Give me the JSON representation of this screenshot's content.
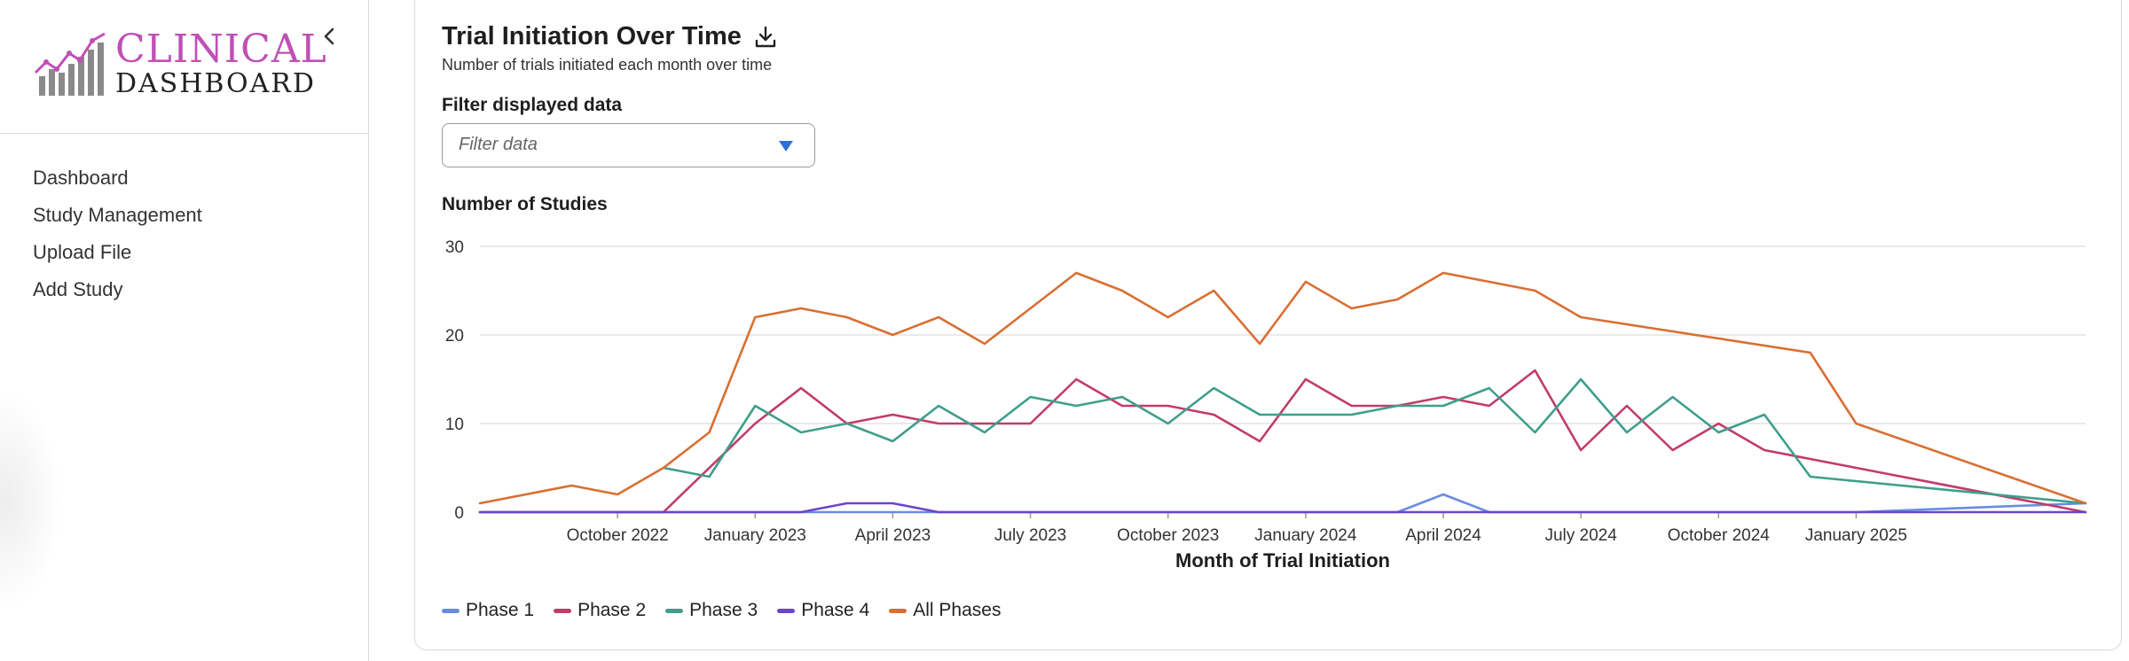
{
  "app": {
    "logo_line1": "CLINICAL",
    "logo_line2": "DASHBOARD",
    "accent_color": "#c04fb6"
  },
  "sidebar": {
    "items": [
      {
        "label": "Dashboard"
      },
      {
        "label": "Study Management"
      },
      {
        "label": "Upload File"
      },
      {
        "label": "Add Study"
      }
    ]
  },
  "card": {
    "title": "Trial Initiation Over Time",
    "subtitle": "Number of trials initiated each month over time",
    "filter_label": "Filter displayed data",
    "filter_placeholder": "Filter data",
    "icons": {
      "download": "download-icon",
      "dropdown": "caret-down-icon"
    }
  },
  "chart_data": {
    "type": "line",
    "ylabel": "Number of Studies",
    "xlabel": "Month of Trial Initiation",
    "ylim": [
      0,
      30
    ],
    "yticks": [
      0,
      10,
      20,
      30
    ],
    "grid": true,
    "legend_position": "bottom-left",
    "x_start": "2022-07",
    "x_end": "2025-06",
    "x": [
      "2022-07",
      "2022-08",
      "2022-09",
      "2022-10",
      "2022-11",
      "2022-12",
      "2023-01",
      "2023-02",
      "2023-03",
      "2023-04",
      "2023-05",
      "2023-06",
      "2023-07",
      "2023-08",
      "2023-09",
      "2023-10",
      "2023-11",
      "2023-12",
      "2024-01",
      "2024-02",
      "2024-03",
      "2024-04",
      "2024-05",
      "2024-06",
      "2024-07",
      "2024-08",
      "2024-09",
      "2024-10",
      "2024-11",
      "2024-12",
      "2025-01",
      "2025-02",
      "2025-03",
      "2025-04",
      "2025-05",
      "2025-06"
    ],
    "xticks": [
      {
        "label": "October 2022",
        "x": "2022-10"
      },
      {
        "label": "January 2023",
        "x": "2023-01"
      },
      {
        "label": "April 2023",
        "x": "2023-04"
      },
      {
        "label": "July 2023",
        "x": "2023-07"
      },
      {
        "label": "October 2023",
        "x": "2023-10"
      },
      {
        "label": "January 2024",
        "x": "2024-01"
      },
      {
        "label": "April 2024",
        "x": "2024-04"
      },
      {
        "label": "July 2024",
        "x": "2024-07"
      },
      {
        "label": "October 2024",
        "x": "2024-10"
      },
      {
        "label": "January 2025",
        "x": "2025-01"
      }
    ],
    "series": [
      {
        "name": "Phase 1",
        "color": "#6a8be0",
        "points": [
          [
            "2022-07",
            0
          ],
          [
            "2022-10",
            0
          ],
          [
            "2023-01",
            0
          ],
          [
            "2023-04",
            0
          ],
          [
            "2023-07",
            0
          ],
          [
            "2023-10",
            0
          ],
          [
            "2024-01",
            0
          ],
          [
            "2024-03",
            0
          ],
          [
            "2024-04",
            2
          ],
          [
            "2024-05",
            0
          ],
          [
            "2024-07",
            0
          ],
          [
            "2024-10",
            0
          ],
          [
            "2025-01",
            0
          ],
          [
            "2025-06",
            1
          ]
        ]
      },
      {
        "name": "Phase 2",
        "color": "#c23b6a",
        "points": [
          [
            "2022-07",
            0
          ],
          [
            "2022-11",
            0
          ],
          [
            "2022-12",
            5
          ],
          [
            "2023-01",
            10
          ],
          [
            "2023-02",
            14
          ],
          [
            "2023-03",
            10
          ],
          [
            "2023-04",
            11
          ],
          [
            "2023-05",
            10
          ],
          [
            "2023-06",
            10
          ],
          [
            "2023-07",
            10
          ],
          [
            "2023-08",
            15
          ],
          [
            "2023-09",
            12
          ],
          [
            "2023-10",
            12
          ],
          [
            "2023-11",
            11
          ],
          [
            "2023-12",
            8
          ],
          [
            "2024-01",
            15
          ],
          [
            "2024-02",
            12
          ],
          [
            "2024-03",
            12
          ],
          [
            "2024-04",
            13
          ],
          [
            "2024-05",
            12
          ],
          [
            "2024-06",
            16
          ],
          [
            "2024-07",
            7
          ],
          [
            "2024-08",
            12
          ],
          [
            "2024-09",
            7
          ],
          [
            "2024-10",
            10
          ],
          [
            "2024-11",
            7
          ],
          [
            "2024-12",
            6
          ],
          [
            "2025-06",
            0
          ]
        ]
      },
      {
        "name": "Phase 3",
        "color": "#3f9e8c",
        "points": [
          [
            "2022-11",
            5
          ],
          [
            "2022-12",
            4
          ],
          [
            "2023-01",
            12
          ],
          [
            "2023-02",
            9
          ],
          [
            "2023-03",
            10
          ],
          [
            "2023-04",
            8
          ],
          [
            "2023-05",
            12
          ],
          [
            "2023-06",
            9
          ],
          [
            "2023-07",
            13
          ],
          [
            "2023-08",
            12
          ],
          [
            "2023-09",
            13
          ],
          [
            "2023-10",
            10
          ],
          [
            "2023-11",
            14
          ],
          [
            "2023-12",
            11
          ],
          [
            "2024-01",
            11
          ],
          [
            "2024-02",
            11
          ],
          [
            "2024-03",
            12
          ],
          [
            "2024-04",
            12
          ],
          [
            "2024-05",
            14
          ],
          [
            "2024-06",
            9
          ],
          [
            "2024-07",
            15
          ],
          [
            "2024-08",
            9
          ],
          [
            "2024-09",
            13
          ],
          [
            "2024-10",
            9
          ],
          [
            "2024-11",
            11
          ],
          [
            "2024-12",
            4
          ],
          [
            "2025-06",
            1
          ]
        ]
      },
      {
        "name": "Phase 4",
        "color": "#6b45c9",
        "points": [
          [
            "2022-07",
            0
          ],
          [
            "2022-10",
            0
          ],
          [
            "2023-01",
            0
          ],
          [
            "2023-02",
            0
          ],
          [
            "2023-03",
            1
          ],
          [
            "2023-04",
            1
          ],
          [
            "2023-05",
            0
          ],
          [
            "2023-07",
            0
          ],
          [
            "2023-10",
            0
          ],
          [
            "2024-01",
            0
          ],
          [
            "2024-04",
            0
          ],
          [
            "2024-07",
            0
          ],
          [
            "2024-10",
            0
          ],
          [
            "2025-01",
            0
          ],
          [
            "2025-06",
            0
          ]
        ]
      },
      {
        "name": "All Phases",
        "color": "#d96f33",
        "points": [
          [
            "2022-07",
            1
          ],
          [
            "2022-09",
            3
          ],
          [
            "2022-10",
            2
          ],
          [
            "2022-11",
            5
          ],
          [
            "2022-12",
            9
          ],
          [
            "2023-01",
            22
          ],
          [
            "2023-02",
            23
          ],
          [
            "2023-03",
            22
          ],
          [
            "2023-04",
            20
          ],
          [
            "2023-05",
            22
          ],
          [
            "2023-06",
            19
          ],
          [
            "2023-07",
            23
          ],
          [
            "2023-08",
            27
          ],
          [
            "2023-09",
            25
          ],
          [
            "2023-10",
            22
          ],
          [
            "2023-11",
            25
          ],
          [
            "2023-12",
            19
          ],
          [
            "2024-01",
            26
          ],
          [
            "2024-02",
            23
          ],
          [
            "2024-03",
            24
          ],
          [
            "2024-04",
            27
          ],
          [
            "2024-05",
            26
          ],
          [
            "2024-06",
            25
          ],
          [
            "2024-07",
            22
          ],
          [
            "2024-12",
            18
          ],
          [
            "2025-01",
            10
          ],
          [
            "2025-06",
            1
          ]
        ]
      }
    ]
  }
}
